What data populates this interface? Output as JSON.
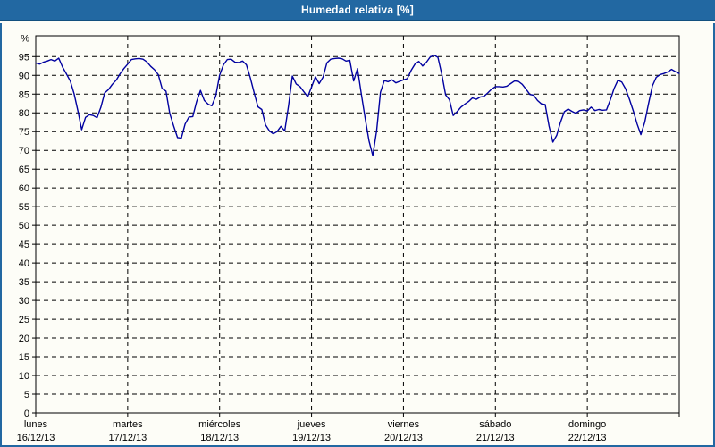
{
  "header": {
    "title": "Humedad relativa [%]"
  },
  "colors": {
    "header_bg": "#2268a2",
    "frame_border": "#2268a2",
    "page_bg": "#fdfdf7",
    "grid": "#000000",
    "axis": "#000000",
    "line": "#0000a0",
    "title_text": "#ffffff"
  },
  "chart_data": {
    "type": "line",
    "title": "Humedad relativa [%]",
    "unit_label": "%",
    "ylim": [
      0,
      100
    ],
    "yticks": [
      0,
      5,
      10,
      15,
      20,
      25,
      30,
      35,
      40,
      45,
      50,
      55,
      60,
      65,
      70,
      75,
      80,
      85,
      90,
      95
    ],
    "grid": "dashed",
    "legend": "none",
    "days": [
      {
        "name": "lunes",
        "date": "16/12/13"
      },
      {
        "name": "martes",
        "date": "17/12/13"
      },
      {
        "name": "miércoles",
        "date": "18/12/13"
      },
      {
        "name": "jueves",
        "date": "19/12/13"
      },
      {
        "name": "viernes",
        "date": "20/12/13"
      },
      {
        "name": "sábado",
        "date": "21/12/13"
      },
      {
        "name": "domingo",
        "date": "22/12/13"
      }
    ],
    "sampling": "hourly",
    "x_hours": [
      0,
      168
    ],
    "series": [
      {
        "name": "Humedad relativa",
        "unit": "%",
        "color": "#0000a0",
        "values": [
          93.3,
          93.0,
          93.5,
          93.8,
          94.2,
          93.8,
          94.6,
          92.2,
          90.4,
          88.5,
          85.1,
          80.6,
          75.5,
          78.8,
          79.5,
          79.3,
          78.7,
          81.5,
          85.3,
          86.2,
          87.6,
          88.7,
          90.4,
          91.8,
          93.0,
          94.2,
          94.4,
          94.5,
          94.3,
          93.6,
          92.4,
          91.5,
          90.2,
          86.5,
          85.8,
          79.8,
          76.5,
          73.4,
          73.3,
          77.0,
          78.9,
          79.0,
          83.0,
          86.0,
          83.3,
          82.3,
          81.9,
          84.5,
          90.0,
          92.8,
          94.2,
          94.3,
          93.5,
          93.4,
          93.8,
          92.8,
          89.4,
          85.4,
          81.6,
          80.9,
          76.8,
          75.2,
          74.4,
          75.0,
          76.4,
          75.2,
          82.0,
          89.8,
          87.7,
          87.0,
          85.6,
          84.3,
          86.9,
          89.6,
          87.8,
          89.5,
          93.3,
          94.3,
          94.5,
          94.6,
          94.4,
          93.8,
          94.0,
          88.5,
          91.8,
          85.0,
          78.5,
          72.5,
          68.6,
          75.2,
          85.5,
          88.6,
          88.3,
          88.8,
          88.0,
          88.4,
          88.8,
          89.1,
          91.3,
          93.0,
          93.7,
          92.5,
          93.5,
          94.9,
          95.4,
          94.8,
          90.3,
          84.8,
          83.5,
          79.3,
          80.3,
          81.5,
          82.3,
          83.0,
          84.0,
          83.6,
          84.2,
          84.4,
          85.3,
          86.3,
          87.0,
          87.0,
          86.9,
          87.1,
          87.8,
          88.5,
          88.4,
          87.6,
          86.3,
          84.9,
          84.7,
          83.3,
          82.4,
          82.2,
          76.5,
          72.2,
          74.0,
          77.5,
          80.3,
          81.0,
          80.4,
          79.9,
          80.6,
          80.8,
          80.5,
          81.5,
          80.6,
          80.9,
          80.7,
          80.8,
          83.5,
          86.5,
          88.7,
          88.2,
          86.4,
          83.6,
          80.5,
          77.0,
          74.2,
          77.5,
          82.5,
          87.2,
          89.5,
          90.2,
          90.5,
          90.9,
          91.6,
          91.0,
          90.5
        ]
      }
    ]
  }
}
